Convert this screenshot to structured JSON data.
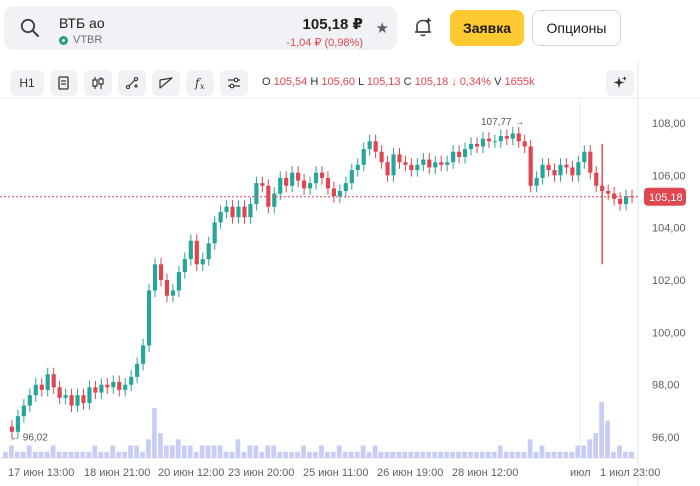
{
  "ticker": {
    "name": "ВТБ ао",
    "symbol": "VTBR",
    "price": "105,18 ₽",
    "change": "-1,04 ₽ (0,98%)"
  },
  "buttons": {
    "order": "Заявка",
    "options": "Опционы"
  },
  "toolbar": {
    "interval": "H1",
    "ohlc_prefix": {
      "o": "O",
      "h": "H",
      "l": "L",
      "c": "C"
    },
    "open": "105,54",
    "high": "105,60",
    "low": "105,13",
    "close": "105,18",
    "change_pct": "↓ 0,34%",
    "volume_label": "V",
    "volume": "1655k"
  },
  "icons": [
    "search-icon",
    "star-icon",
    "bell-add-icon",
    "document-icon",
    "candles-icon",
    "draw-icon",
    "trendline-icon",
    "function-icon",
    "settings-icon",
    "sparkle-icon"
  ],
  "colors": {
    "up": "#26a69a",
    "down": "#e04650",
    "accent": "#ffc932",
    "volume": "#c7cdf5"
  },
  "chart_data": {
    "type": "candlestick",
    "y_ticks": [
      "108,00",
      "106,00",
      "104,00",
      "102,00",
      "100,00",
      "98,00",
      "96,00"
    ],
    "ylim": [
      95.2,
      108.8
    ],
    "x_labels": [
      "17 июн 13:00",
      "18 июн 21:00",
      "20 июн 12:00",
      "23 июн 20:00",
      "25 июн 11:00",
      "26 июн 19:00",
      "28 июн 12:00",
      "июл",
      "1 июл 23:00"
    ],
    "current_price_label": "105,18",
    "current_price": 105.18,
    "max_label": "107,77 →",
    "max_value": 107.77,
    "min_label": "← 96,02",
    "min_value": 96.02,
    "path": [
      96.4,
      96.2,
      96.8,
      97.2,
      97.6,
      98.0,
      97.8,
      98.4,
      97.9,
      97.5,
      97.6,
      97.2,
      97.6,
      97.3,
      97.9,
      97.7,
      98.0,
      97.9,
      98.1,
      97.8,
      98.0,
      98.3,
      98.8,
      99.5,
      101.6,
      102.6,
      102.0,
      101.4,
      101.6,
      102.3,
      102.8,
      103.5,
      102.6,
      102.8,
      103.4,
      104.2,
      104.6,
      104.8,
      104.4,
      104.8,
      104.4,
      104.9,
      105.7,
      105.6,
      104.8,
      105.3,
      105.9,
      105.6,
      106.1,
      105.8,
      105.5,
      105.7,
      106.1,
      105.9,
      105.5,
      105.2,
      105.4,
      105.7,
      106.2,
      106.4,
      107.0,
      107.3,
      106.9,
      106.5,
      106.0,
      106.8,
      106.5,
      106.4,
      106.2,
      106.4,
      106.6,
      106.3,
      106.5,
      106.4,
      106.5,
      106.9,
      106.7,
      107.0,
      107.2,
      107.1,
      107.4,
      107.3,
      107.3,
      107.5,
      107.4,
      107.6,
      107.3,
      107.1,
      105.6,
      105.9,
      106.4,
      106.2,
      106.0,
      106.4,
      106.3,
      106.0,
      106.5,
      106.9,
      106.1,
      105.6,
      105.4,
      105.3,
      105.1,
      104.9,
      105.2,
      105.18
    ],
    "volume": [
      1,
      2,
      1,
      1,
      2,
      1,
      1,
      1,
      2,
      1,
      1,
      1,
      1,
      1,
      1,
      2,
      1,
      1,
      2,
      1,
      1,
      2,
      2,
      1,
      3,
      8,
      4,
      2,
      2,
      3,
      2,
      2,
      1,
      2,
      2,
      2,
      2,
      1,
      1,
      3,
      1,
      2,
      2,
      1,
      2,
      2,
      1,
      1,
      1,
      1,
      2,
      1,
      1,
      2,
      1,
      1,
      2,
      1,
      1,
      1,
      2,
      1,
      2,
      1,
      1,
      1,
      1,
      1,
      1,
      1,
      1,
      1,
      1,
      1,
      1,
      1,
      1,
      1,
      1,
      1,
      1,
      1,
      1,
      2,
      1,
      1,
      1,
      1,
      3,
      1,
      2,
      1,
      1,
      1,
      1,
      1,
      2,
      2,
      3,
      4,
      9,
      6,
      1,
      2,
      1,
      1
    ]
  }
}
